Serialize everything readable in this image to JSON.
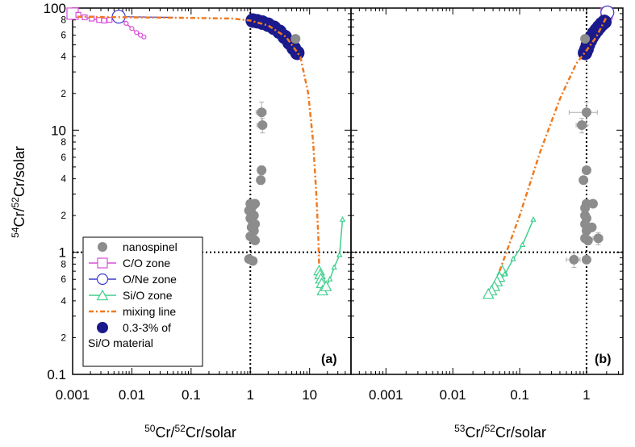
{
  "chart_data": {
    "type": "scatter",
    "ylabel_parts": {
      "sup1": "54",
      "mid": "Cr/",
      "sup2": "52",
      "tail": "Cr/solar"
    },
    "yscale": "log",
    "ylim": [
      0.1,
      100
    ],
    "yticks": [
      {
        "value": 100,
        "label": "100"
      },
      {
        "value": 10,
        "label": "10"
      },
      {
        "value": 1,
        "label": "1"
      },
      {
        "value": 0.1,
        "label": "0.1"
      }
    ],
    "minor_tick_labels": [
      "2",
      "4",
      "6",
      "8"
    ],
    "reference_lines": {
      "x": 1,
      "y": 1,
      "style": "dotted"
    },
    "colors": {
      "nanospinel": "#8c8c8c",
      "co_zone": "#d94fd9",
      "one_zone": "#3b3bcc",
      "sio_zone": "#3fcf8c",
      "mixing_line": "#f07a20",
      "sio_material": "#1a1a8c",
      "error_bar": "#b0b0b0"
    },
    "legend": {
      "position": "bottom-left of panel a",
      "entries": [
        {
          "key": "nanospinel",
          "label": "nanospinel",
          "marker": "filled-circle"
        },
        {
          "key": "co_zone",
          "label": "C/O zone",
          "marker": "open-square"
        },
        {
          "key": "one_zone",
          "label": "O/Ne zone",
          "marker": "open-circle"
        },
        {
          "key": "sio_zone",
          "label": "Si/O zone",
          "marker": "open-triangle"
        },
        {
          "key": "mixing_line",
          "label": "mixing line",
          "marker": "dash-dot-line"
        },
        {
          "key": "sio_material",
          "label_line1": "0.3-3% of",
          "label_line2": "Si/O material",
          "marker": "filled-circle"
        }
      ]
    },
    "panels": [
      {
        "id": "a",
        "label": "(a)",
        "xlabel_parts": {
          "sup1": "50",
          "mid": "Cr/",
          "sup2": "52",
          "tail": "Cr/solar"
        },
        "xscale": "log",
        "xlim": [
          0.001,
          50
        ],
        "xticks": [
          {
            "value": 0.001,
            "label": "0.001"
          },
          {
            "value": 0.01,
            "label": "0.01"
          },
          {
            "value": 0.1,
            "label": "0.1"
          },
          {
            "value": 1,
            "label": "1"
          },
          {
            "value": 10,
            "label": "10"
          }
        ],
        "series": {
          "nanospinel": [
            {
              "x": 1.55,
              "y": 14,
              "xerr": 0.3,
              "yerr": 3
            },
            {
              "x": 1.6,
              "y": 11,
              "xerr": 0.3,
              "yerr": 1.5
            },
            {
              "x": 1.55,
              "y": 4.7,
              "xerr": 0.2,
              "yerr": 0.4
            },
            {
              "x": 1.5,
              "y": 3.9,
              "xerr": 0.2,
              "yerr": 0.3
            },
            {
              "x": 1.0,
              "y": 2.5
            },
            {
              "x": 1.1,
              "y": 2.4
            },
            {
              "x": 1.2,
              "y": 2.5
            },
            {
              "x": 0.95,
              "y": 2.2
            },
            {
              "x": 1.05,
              "y": 2.1
            },
            {
              "x": 1.15,
              "y": 2.0
            },
            {
              "x": 1.0,
              "y": 1.9
            },
            {
              "x": 1.1,
              "y": 1.75
            },
            {
              "x": 1.2,
              "y": 1.7
            },
            {
              "x": 1.05,
              "y": 1.6
            },
            {
              "x": 1.15,
              "y": 1.5
            },
            {
              "x": 1.0,
              "y": 1.35
            },
            {
              "x": 1.1,
              "y": 1.3
            },
            {
              "x": 1.2,
              "y": 1.25
            },
            {
              "x": 0.95,
              "y": 0.88
            },
            {
              "x": 1.1,
              "y": 0.85
            },
            {
              "x": 5.8,
              "y": 56
            }
          ],
          "co_zone": [
            {
              "x": 0.001,
              "y": 90
            },
            {
              "x": 0.00125,
              "y": 88
            },
            {
              "x": 0.0016,
              "y": 84
            },
            {
              "x": 0.0021,
              "y": 82
            },
            {
              "x": 0.0028,
              "y": 80
            },
            {
              "x": 0.0034,
              "y": 79
            },
            {
              "x": 0.0042,
              "y": 80
            }
          ],
          "one_zone": [
            {
              "x": 0.006,
              "y": 85
            },
            {
              "x": 0.008,
              "y": 75
            },
            {
              "x": 0.01,
              "y": 68
            },
            {
              "x": 0.012,
              "y": 63
            },
            {
              "x": 0.014,
              "y": 60
            },
            {
              "x": 0.016,
              "y": 58
            }
          ],
          "one_zone_tail": [
            {
              "x": 0.006,
              "y": 85
            },
            {
              "x": 0.05,
              "y": 84
            }
          ],
          "sio_zone": [
            {
              "x": 14.5,
              "y": 0.7
            },
            {
              "x": 15,
              "y": 0.65
            },
            {
              "x": 15.5,
              "y": 0.6
            },
            {
              "x": 16,
              "y": 0.55
            },
            {
              "x": 16.5,
              "y": 0.48
            },
            {
              "x": 19,
              "y": 0.52
            },
            {
              "x": 22,
              "y": 0.6
            },
            {
              "x": 26,
              "y": 0.75
            },
            {
              "x": 32,
              "y": 0.95
            },
            {
              "x": 36,
              "y": 1.85
            }
          ],
          "mixing_line": [
            {
              "x": 0.0012,
              "y": 85
            },
            {
              "x": 0.01,
              "y": 84
            },
            {
              "x": 0.1,
              "y": 83
            },
            {
              "x": 0.5,
              "y": 82
            },
            {
              "x": 1.0,
              "y": 79
            },
            {
              "x": 2.0,
              "y": 72
            },
            {
              "x": 4.0,
              "y": 58
            },
            {
              "x": 7.0,
              "y": 40
            },
            {
              "x": 9.5,
              "y": 20
            },
            {
              "x": 11.5,
              "y": 8
            },
            {
              "x": 13.0,
              "y": 3
            },
            {
              "x": 14.0,
              "y": 1.4
            },
            {
              "x": 14.5,
              "y": 0.8
            }
          ],
          "sio_material": [
            {
              "x": 1.1,
              "y": 79
            },
            {
              "x": 1.3,
              "y": 78
            },
            {
              "x": 1.6,
              "y": 76
            },
            {
              "x": 2.0,
              "y": 73
            },
            {
              "x": 2.5,
              "y": 69
            },
            {
              "x": 3.1,
              "y": 64
            },
            {
              "x": 3.8,
              "y": 58
            },
            {
              "x": 4.6,
              "y": 52
            },
            {
              "x": 5.4,
              "y": 47
            },
            {
              "x": 6.2,
              "y": 43
            }
          ]
        }
      },
      {
        "id": "b",
        "label": "(b)",
        "xlabel_parts": {
          "sup1": "53",
          "mid": "Cr/",
          "sup2": "52",
          "tail": "Cr/solar"
        },
        "xscale": "log",
        "xlim": [
          0.0003,
          3.5
        ],
        "xticks": [
          {
            "value": 0.001,
            "label": "0.001"
          },
          {
            "value": 0.01,
            "label": "0.01"
          },
          {
            "value": 0.1,
            "label": "0.1"
          },
          {
            "value": 1,
            "label": "1"
          }
        ],
        "series": {
          "nanospinel": [
            {
              "x": 1.0,
              "y": 14,
              "xerr": 0.45,
              "yerr": 3
            },
            {
              "x": 0.85,
              "y": 11,
              "xerr": 0.15,
              "yerr": 1.5
            },
            {
              "x": 1.0,
              "y": 4.7
            },
            {
              "x": 0.9,
              "y": 3.9
            },
            {
              "x": 1.0,
              "y": 2.5
            },
            {
              "x": 0.95,
              "y": 2.3
            },
            {
              "x": 1.25,
              "y": 2.5
            },
            {
              "x": 0.95,
              "y": 2.0
            },
            {
              "x": 1.0,
              "y": 1.9
            },
            {
              "x": 0.95,
              "y": 1.7
            },
            {
              "x": 1.0,
              "y": 1.5
            },
            {
              "x": 1.2,
              "y": 1.6
            },
            {
              "x": 0.95,
              "y": 1.3
            },
            {
              "x": 1.5,
              "y": 1.3,
              "xerr": 0.25,
              "yerr": 0.15
            },
            {
              "x": 1.05,
              "y": 1.25,
              "xerr": 0.1,
              "yerr": 0.1
            },
            {
              "x": 0.65,
              "y": 0.87,
              "xerr": 0.15,
              "yerr": 0.12
            },
            {
              "x": 1.0,
              "y": 0.87
            },
            {
              "x": 0.95,
              "y": 56
            }
          ],
          "co_zone": [
            {
              "x": 2.0,
              "y": 90
            },
            {
              "x": 2.1,
              "y": 88
            },
            {
              "x": 2.15,
              "y": 86
            }
          ],
          "one_zone": [
            {
              "x": 2.05,
              "y": 92
            }
          ],
          "sio_zone": [
            {
              "x": 0.055,
              "y": 0.7
            },
            {
              "x": 0.05,
              "y": 0.62
            },
            {
              "x": 0.046,
              "y": 0.57
            },
            {
              "x": 0.042,
              "y": 0.52
            },
            {
              "x": 0.038,
              "y": 0.48
            },
            {
              "x": 0.034,
              "y": 0.45
            },
            {
              "x": 0.06,
              "y": 0.66
            },
            {
              "x": 0.08,
              "y": 0.88
            },
            {
              "x": 0.11,
              "y": 1.15
            },
            {
              "x": 0.16,
              "y": 1.85
            }
          ],
          "mixing_line": [
            {
              "x": 0.05,
              "y": 0.7
            },
            {
              "x": 0.1,
              "y": 2.0
            },
            {
              "x": 0.2,
              "y": 6.5
            },
            {
              "x": 0.4,
              "y": 18
            },
            {
              "x": 0.7,
              "y": 35
            },
            {
              "x": 1.0,
              "y": 45
            },
            {
              "x": 1.4,
              "y": 58
            },
            {
              "x": 2.0,
              "y": 85
            }
          ],
          "sio_material": [
            {
              "x": 0.95,
              "y": 43
            },
            {
              "x": 1.0,
              "y": 46
            },
            {
              "x": 1.05,
              "y": 50
            },
            {
              "x": 1.12,
              "y": 54
            },
            {
              "x": 1.2,
              "y": 58
            },
            {
              "x": 1.3,
              "y": 62
            },
            {
              "x": 1.42,
              "y": 66
            },
            {
              "x": 1.55,
              "y": 70
            },
            {
              "x": 1.7,
              "y": 74
            },
            {
              "x": 1.85,
              "y": 77
            }
          ]
        }
      }
    ]
  }
}
